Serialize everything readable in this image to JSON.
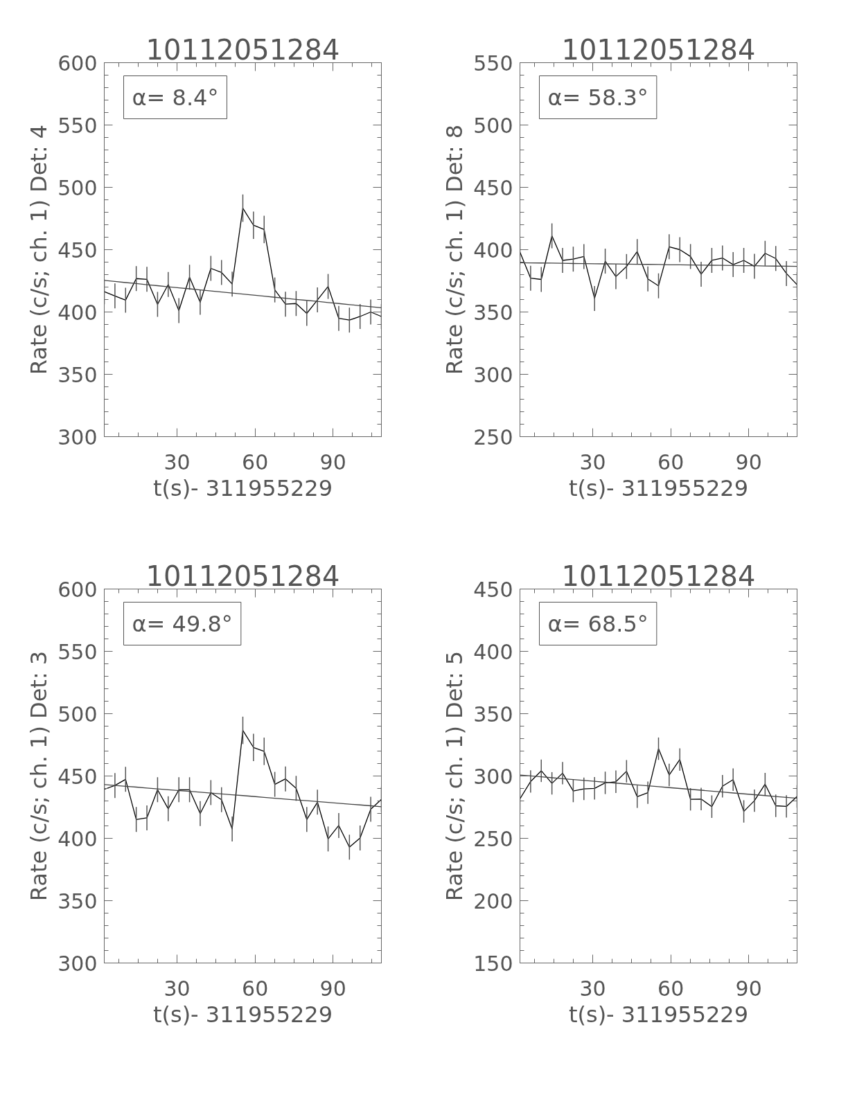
{
  "chart_data": [
    {
      "type": "line",
      "title": "10112051284",
      "xlabel": "t(s)- 311955229",
      "ylabel": "Rate (c/s; ch. 1) Det: 4",
      "annotations": [
        "α= 8.4°"
      ],
      "xlim": [
        2,
        108.6
      ],
      "xticks": [
        30,
        60,
        90
      ],
      "ylim": [
        300,
        600
      ],
      "yticks": [
        300,
        350,
        400,
        450,
        500,
        550,
        600
      ],
      "grid": false,
      "marker": "none",
      "x": [
        2,
        6.1,
        10.2,
        14.3,
        18.4,
        22.5,
        26.6,
        30.7,
        34.8,
        38.9,
        43,
        47.1,
        51.2,
        55.3,
        59.4,
        63.5,
        67.6,
        71.7,
        75.8,
        79.9,
        84,
        88.1,
        92.2,
        96.3,
        100.4,
        104.5,
        108.6
      ],
      "series": [
        {
          "color": "#000000",
          "values": [
            416.3,
            412.9,
            409.5,
            426.8,
            426.2,
            406.1,
            422.1,
            401.1,
            427.9,
            407.8,
            435.0,
            431.7,
            422.4,
            483.3,
            469.6,
            466.2,
            417.7,
            406.3,
            406.8,
            398.9,
            409.7,
            420.5,
            394.9,
            393.5,
            396.4,
            400.0,
            396.4
          ],
          "errors": [
            10,
            10,
            10,
            10,
            10,
            10,
            10,
            10,
            10,
            10,
            10,
            10,
            10,
            11,
            11,
            11,
            10,
            10,
            10,
            10,
            10,
            10,
            10,
            10,
            10,
            10,
            10
          ]
        },
        {
          "type": "line",
          "color": "#444444",
          "values": [
            425.3,
            424.5,
            423.6,
            422.8,
            421.9,
            421.1,
            420.2,
            419.4,
            418.6,
            417.7,
            416.9,
            416.0,
            415.2,
            414.4,
            413.5,
            412.7,
            411.8,
            411.0,
            410.1,
            409.3,
            408.5,
            407.6,
            406.8,
            405.9,
            405.1,
            404.2,
            403.4
          ]
        }
      ]
    },
    {
      "type": "line",
      "title": "10112051284",
      "xlabel": "t(s)- 311955229",
      "ylabel": "Rate (c/s; ch. 1) Det: 8",
      "annotations": [
        "α= 58.3°"
      ],
      "xlim": [
        2,
        108.6
      ],
      "xticks": [
        30,
        60,
        90
      ],
      "ylim": [
        250,
        550
      ],
      "yticks": [
        250,
        300,
        350,
        400,
        450,
        500,
        550
      ],
      "grid": false,
      "marker": "none",
      "x": [
        2,
        6.1,
        10.2,
        14.3,
        18.4,
        22.5,
        26.6,
        30.7,
        34.8,
        38.9,
        43,
        47.1,
        51.2,
        55.3,
        59.4,
        63.5,
        67.6,
        71.7,
        75.8,
        79.9,
        84,
        88.1,
        92.2,
        96.3,
        100.4,
        104.5,
        108.6
      ],
      "series": [
        {
          "color": "#000000",
          "values": [
            398.1,
            377.1,
            376.1,
            411.1,
            391.4,
            392.4,
            394.5,
            360.9,
            390.8,
            378.4,
            386.5,
            398.5,
            376.5,
            371.0,
            402.3,
            400.0,
            394.5,
            380.3,
            391.4,
            393.3,
            388.0,
            391.4,
            386.6,
            397.1,
            392.9,
            380.9,
            371.9
          ],
          "errors": [
            10,
            10,
            10,
            10,
            10,
            10,
            10,
            10,
            10,
            10,
            10,
            10,
            10,
            10,
            10,
            10,
            10,
            10,
            10,
            10,
            10,
            10,
            10,
            10,
            10,
            10,
            10
          ]
        },
        {
          "type": "line",
          "color": "#444444",
          "values": [
            389.5,
            389.4,
            389.3,
            389.2,
            389.1,
            388.9,
            388.8,
            388.7,
            388.6,
            388.5,
            388.4,
            388.3,
            388.2,
            388.1,
            387.9,
            387.8,
            387.7,
            387.6,
            387.5,
            387.4,
            387.3,
            387.2,
            387.1,
            386.9,
            386.8,
            386.7,
            386.6
          ]
        }
      ]
    },
    {
      "type": "line",
      "title": "10112051284",
      "xlabel": "t(s)- 311955229",
      "ylabel": "Rate (c/s; ch. 1) Det: 3",
      "annotations": [
        "α= 49.8°"
      ],
      "xlim": [
        2,
        108.6
      ],
      "xticks": [
        30,
        60,
        90
      ],
      "ylim": [
        300,
        600
      ],
      "yticks": [
        300,
        350,
        400,
        450,
        500,
        550,
        600
      ],
      "grid": false,
      "marker": "none",
      "x": [
        2,
        6.1,
        10.2,
        14.3,
        18.4,
        22.5,
        26.6,
        30.7,
        34.8,
        38.9,
        43,
        47.1,
        51.2,
        55.3,
        59.4,
        63.5,
        67.6,
        71.7,
        75.8,
        79.9,
        84,
        88.1,
        92.2,
        96.3,
        100.4,
        104.5,
        108.6
      ],
      "series": [
        {
          "color": "#000000",
          "values": [
            439.3,
            442.4,
            447.3,
            415.1,
            416.4,
            439.0,
            423.7,
            439.0,
            439.0,
            419.9,
            436.7,
            431.0,
            407.5,
            486.6,
            472.9,
            469.8,
            443.3,
            447.7,
            440.1,
            415.1,
            429.0,
            399.5,
            410.3,
            392.9,
            400.3,
            423.3,
            431.3
          ],
          "errors": [
            10,
            10,
            10,
            10,
            10,
            10,
            10,
            10,
            10,
            10,
            10,
            10,
            10,
            11,
            11,
            11,
            10,
            10,
            10,
            10,
            10,
            10,
            10,
            10,
            10,
            10,
            10
          ]
        },
        {
          "type": "line",
          "color": "#444444",
          "values": [
            443.1,
            442.4,
            441.7,
            441.1,
            440.4,
            439.7,
            439.0,
            438.3,
            437.7,
            437.0,
            436.3,
            435.6,
            434.9,
            434.3,
            433.6,
            432.9,
            432.2,
            431.5,
            430.8,
            430.2,
            429.5,
            428.8,
            428.1,
            427.4,
            426.8,
            426.1,
            425.4
          ]
        }
      ]
    },
    {
      "type": "line",
      "title": "10112051284",
      "xlabel": "t(s)- 311955229",
      "ylabel": "Rate (c/s; ch. 1) Det: 5",
      "annotations": [
        "α= 68.5°"
      ],
      "xlim": [
        2,
        108.6
      ],
      "xticks": [
        30,
        60,
        90
      ],
      "ylim": [
        150,
        450
      ],
      "yticks": [
        150,
        200,
        250,
        300,
        350,
        400,
        450
      ],
      "grid": false,
      "marker": "none",
      "x": [
        2,
        6.1,
        10.2,
        14.3,
        18.4,
        22.5,
        26.6,
        30.7,
        34.8,
        38.9,
        43,
        47.1,
        51.2,
        55.3,
        59.4,
        63.5,
        67.6,
        71.7,
        75.8,
        79.9,
        84,
        88.1,
        92.2,
        96.3,
        100.4,
        104.5,
        108.6
      ],
      "series": [
        {
          "color": "#000000",
          "values": [
            281.7,
            295.6,
            304.2,
            294.1,
            302.3,
            288.0,
            289.7,
            290.1,
            294.5,
            295.4,
            303.8,
            283.4,
            286.6,
            321.9,
            300.8,
            313.2,
            281.3,
            281.5,
            275.4,
            291.8,
            297.1,
            271.6,
            280.2,
            293.5,
            276.1,
            275.6,
            283.6
          ],
          "errors": [
            9,
            9,
            9,
            9,
            9,
            9,
            9,
            9,
            9,
            9,
            9,
            9,
            9,
            9,
            9,
            9,
            9,
            9,
            9,
            9,
            9,
            9,
            9,
            9,
            9,
            9,
            9
          ]
        },
        {
          "type": "line",
          "color": "#444444",
          "values": [
            300.8,
            300.1,
            299.4,
            298.6,
            297.9,
            297.2,
            296.5,
            295.8,
            295.0,
            294.3,
            293.6,
            292.9,
            292.2,
            291.5,
            290.7,
            290.0,
            289.3,
            288.6,
            287.9,
            287.1,
            286.4,
            285.7,
            285.0,
            284.3,
            283.5,
            282.8,
            282.1
          ]
        }
      ]
    }
  ]
}
